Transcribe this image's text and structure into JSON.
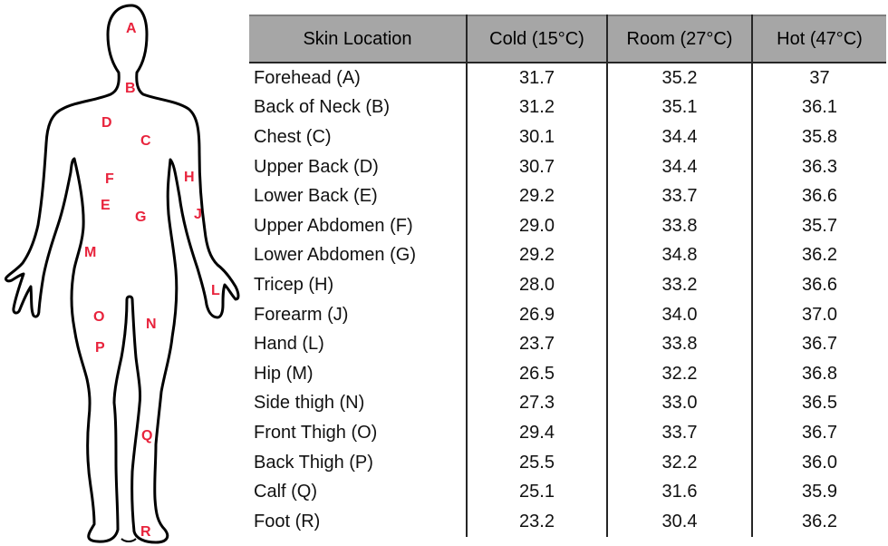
{
  "table": {
    "headers": [
      "Skin Location",
      "Cold (15°C)",
      "Room (27°C)",
      "Hot (47°C)"
    ],
    "rows": [
      [
        "Forehead (A)",
        "31.7",
        "35.2",
        "37"
      ],
      [
        "Back of Neck (B)",
        "31.2",
        "35.1",
        "36.1"
      ],
      [
        "Chest (C)",
        "30.1",
        "34.4",
        "35.8"
      ],
      [
        "Upper Back (D)",
        "30.7",
        "34.4",
        "36.3"
      ],
      [
        "Lower Back (E)",
        "29.2",
        "33.7",
        "36.6"
      ],
      [
        "Upper Abdomen (F)",
        "29.0",
        "33.8",
        "35.7"
      ],
      [
        "Lower Abdomen (G)",
        "29.2",
        "34.8",
        "36.2"
      ],
      [
        "Tricep (H)",
        "28.0",
        "33.2",
        "36.6"
      ],
      [
        "Forearm (J)",
        "26.9",
        "34.0",
        "37.0"
      ],
      [
        "Hand (L)",
        "23.7",
        "33.8",
        "36.7"
      ],
      [
        "Hip (M)",
        "26.5",
        "32.2",
        "36.8"
      ],
      [
        "Side thigh (N)",
        "27.3",
        "33.0",
        "36.5"
      ],
      [
        "Front Thigh (O)",
        "29.4",
        "33.7",
        "36.7"
      ],
      [
        "Back Thigh (P)",
        "25.5",
        "32.2",
        "36.0"
      ],
      [
        "Calf (Q)",
        "25.1",
        "31.6",
        "35.9"
      ],
      [
        "Foot (R)",
        "23.2",
        "30.4",
        "36.2"
      ]
    ]
  },
  "figure": {
    "labels": [
      "A",
      "B",
      "C",
      "D",
      "E",
      "F",
      "G",
      "H",
      "J",
      "L",
      "M",
      "N",
      "O",
      "P",
      "Q",
      "R"
    ],
    "label_color": "#e8233c",
    "outline_color": "#000000"
  },
  "colors": {
    "header_bg": "#a6a6a6",
    "rule": "#262626"
  }
}
